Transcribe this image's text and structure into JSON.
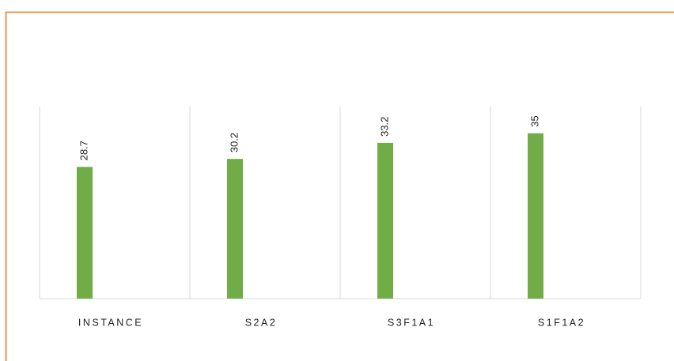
{
  "chart_data": {
    "type": "bar",
    "categories": [
      "INSTANCE",
      "S2A2",
      "S3F1A1",
      "S1F1A2"
    ],
    "values": [
      28.7,
      30.2,
      33.2,
      35
    ],
    "color": "#70ad47",
    "ylim": [
      4,
      40
    ],
    "grid": true
  }
}
